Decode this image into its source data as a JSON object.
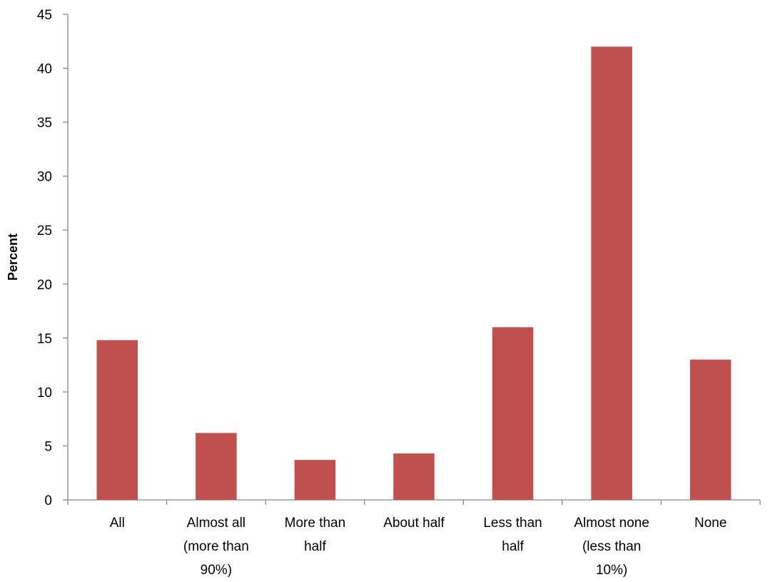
{
  "chart_data": {
    "type": "bar",
    "categories": [
      [
        "All"
      ],
      [
        "Almost all",
        "(more than",
        "90%)"
      ],
      [
        "More than",
        "half"
      ],
      [
        "About half"
      ],
      [
        "Less than",
        "half"
      ],
      [
        "Almost none",
        "(less than",
        "10%)"
      ],
      [
        "None"
      ]
    ],
    "series": [
      {
        "values": [
          14.8,
          6.2,
          3.7,
          4.3,
          16.0,
          42.0,
          13.0
        ]
      }
    ],
    "ylabel": "Percent",
    "xlabel": "",
    "ylim": [
      0,
      45
    ],
    "yticks": [
      0,
      5,
      10,
      15,
      20,
      25,
      30,
      35,
      40,
      45
    ],
    "grid": false,
    "bar_color": "#c0504d",
    "axis_color": "#868686"
  }
}
